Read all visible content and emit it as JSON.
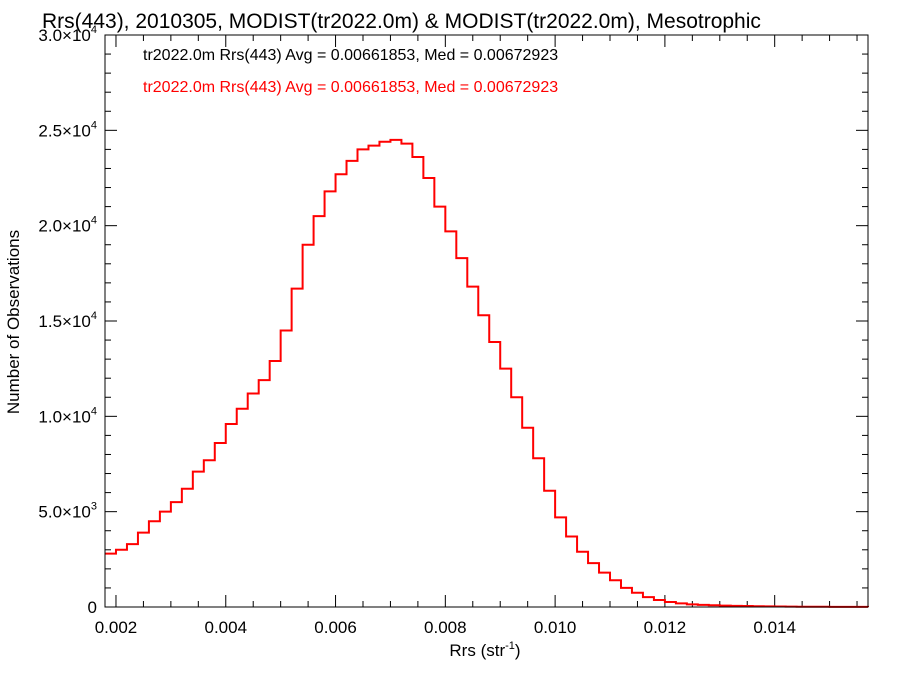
{
  "chart_data": {
    "type": "histogram-step",
    "title": "Rrs(443), 2010305, MODIST(tr2022.0m) & MODIST(tr2022.0m), Mesotrophic",
    "xlabel": "Rrs (str",
    "xlabel_sup": "-1",
    "xlabel_close": ")",
    "ylabel": "Number of Observations",
    "xlim": [
      0.0018,
      0.0157
    ],
    "ylim": [
      0,
      30000
    ],
    "x_ticks": [
      0.002,
      0.004,
      0.006,
      0.008,
      0.01,
      0.012,
      0.014
    ],
    "x_tick_labels": [
      "0.002",
      "0.004",
      "0.006",
      "0.008",
      "0.010",
      "0.012",
      "0.014"
    ],
    "y_ticks": [
      0,
      5000,
      10000,
      15000,
      20000,
      25000,
      30000
    ],
    "y_tick_labels": [
      {
        "mant": "0",
        "sup": ""
      },
      {
        "mant": "5.0×10",
        "sup": "3"
      },
      {
        "mant": "1.0×10",
        "sup": "4"
      },
      {
        "mant": "1.5×10",
        "sup": "4"
      },
      {
        "mant": "2.0×10",
        "sup": "4"
      },
      {
        "mant": "2.5×10",
        "sup": "4"
      },
      {
        "mant": "3.0×10",
        "sup": "4"
      }
    ],
    "grid": false,
    "legend_position": "top-left",
    "legend": [
      {
        "text": "tr2022.0m Rrs(443) Avg = 0.00661853, Med = 0.00672923",
        "color": "#000000"
      },
      {
        "text": "tr2022.0m Rrs(443) Avg = 0.00661853, Med = 0.00672923",
        "color": "#ff0000"
      }
    ],
    "series": [
      {
        "color": "#ff0000",
        "x": [
          0.0018,
          0.002,
          0.0022,
          0.0024,
          0.0026,
          0.0028,
          0.003,
          0.0032,
          0.0034,
          0.0036,
          0.0038,
          0.004,
          0.0042,
          0.0044,
          0.0046,
          0.0048,
          0.005,
          0.0052,
          0.0054,
          0.0056,
          0.0058,
          0.006,
          0.0062,
          0.0064,
          0.0066,
          0.0068,
          0.007,
          0.0072,
          0.0074,
          0.0076,
          0.0078,
          0.008,
          0.0082,
          0.0084,
          0.0086,
          0.0088,
          0.009,
          0.0092,
          0.0094,
          0.0096,
          0.0098,
          0.01,
          0.0102,
          0.0104,
          0.0106,
          0.0108,
          0.011,
          0.0112,
          0.0114,
          0.0116,
          0.0118,
          0.012,
          0.0122,
          0.0124,
          0.0126,
          0.0128,
          0.013,
          0.0132,
          0.0134,
          0.0136,
          0.0138,
          0.014,
          0.0142,
          0.0144,
          0.0146,
          0.0148,
          0.015,
          0.0152,
          0.0154,
          0.0156,
          0.0157
        ],
        "y": [
          2800,
          3000,
          3300,
          3900,
          4500,
          5000,
          5500,
          6200,
          7100,
          7700,
          8600,
          9600,
          10400,
          11200,
          11900,
          12900,
          14500,
          16700,
          19000,
          20500,
          21800,
          22700,
          23400,
          24000,
          24200,
          24400,
          24500,
          24300,
          23600,
          22500,
          21000,
          19700,
          18300,
          16800,
          15300,
          13900,
          12500,
          11000,
          9400,
          7800,
          6100,
          4700,
          3700,
          2900,
          2300,
          1800,
          1400,
          1000,
          750,
          520,
          370,
          260,
          190,
          140,
          110,
          90,
          70,
          60,
          50,
          40,
          30,
          25,
          20,
          15,
          12,
          10,
          8,
          6,
          5,
          4,
          3
        ]
      }
    ]
  }
}
